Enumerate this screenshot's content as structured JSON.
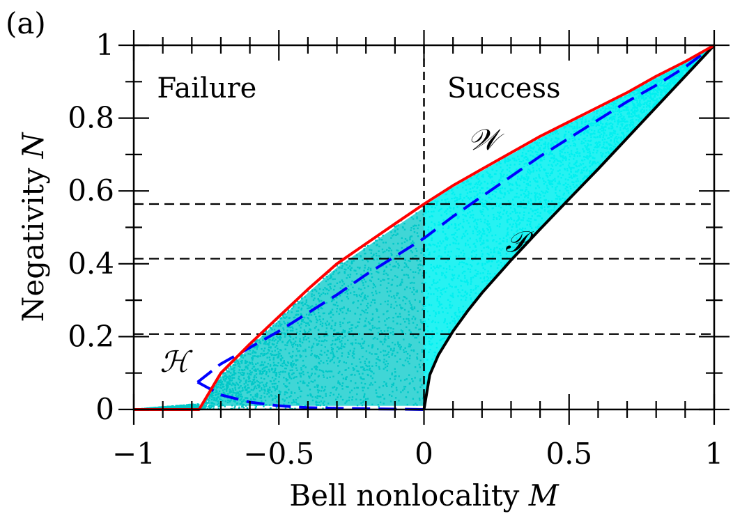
{
  "panel_label": "(a)",
  "chart_data": {
    "type": "scatter",
    "xlabel": "Bell nonlocality M",
    "xlabel_main": "Bell nonlocality",
    "xlabel_var": "M",
    "ylabel": "Negativity N",
    "ylabel_main": "Negativity",
    "ylabel_var": "N",
    "xlim": [
      -1,
      1
    ],
    "ylim": [
      0,
      1
    ],
    "x_ticks": [
      -1,
      -0.5,
      0,
      0.5,
      1
    ],
    "x_tick_labels": [
      "−1",
      "−0.5",
      "0",
      "0.5",
      "1"
    ],
    "y_ticks": [
      0,
      0.2,
      0.4,
      0.6,
      0.8,
      1
    ],
    "y_tick_labels": [
      "0",
      "0.2",
      "0.4",
      "0.6",
      "0.8",
      "1"
    ],
    "x_minor_step": 0.1,
    "y_minor_step": 0.1,
    "grid": false,
    "region_labels": [
      {
        "text": "Failure",
        "x": -0.92,
        "y": 0.88
      },
      {
        "text": "Success",
        "x": 0.08,
        "y": 0.88
      }
    ],
    "curve_labels": [
      {
        "text": "𝒲",
        "x": 0.15,
        "y": 0.74,
        "color": "#000000"
      },
      {
        "text": "𝒫",
        "x": 0.28,
        "y": 0.46,
        "color": "#000000"
      },
      {
        "text": "ℋ",
        "x": -0.91,
        "y": 0.13,
        "color": "#000000"
      }
    ],
    "reference_lines": {
      "vertical_x": 0,
      "horizontal_y": [
        0.564,
        0.414,
        0.207
      ]
    },
    "colors": {
      "scatter": "#00c8c8",
      "scatter_success": "#00f0f0",
      "W_curve": "#ff0000",
      "H_curve": "#0000ff",
      "P_curve": "#000000",
      "reference": "#000000"
    },
    "series": [
      {
        "name": "𝒲",
        "style": "solid",
        "x": [
          -1.0,
          -0.775,
          -0.7,
          -0.65,
          -0.6,
          -0.5,
          -0.4,
          -0.3,
          -0.2,
          -0.1,
          0.0,
          0.1,
          0.2,
          0.3,
          0.4,
          0.5,
          0.6,
          0.7,
          0.8,
          0.9,
          1.0
        ],
        "y": [
          0.0,
          0.0,
          0.1,
          0.14,
          0.18,
          0.255,
          0.33,
          0.4,
          0.455,
          0.51,
          0.564,
          0.615,
          0.66,
          0.705,
          0.75,
          0.79,
          0.83,
          0.87,
          0.915,
          0.955,
          1.0
        ]
      },
      {
        "name": "ℋ",
        "style": "dashed",
        "x": [
          -0.78,
          -0.7,
          -0.6,
          -0.5,
          -0.4,
          -0.3,
          -0.2,
          -0.1,
          0.0,
          0.1,
          0.2,
          0.3,
          0.4,
          0.5,
          0.6,
          0.7,
          0.8,
          0.9,
          1.0
        ],
        "y": [
          0.075,
          0.125,
          0.17,
          0.215,
          0.265,
          0.315,
          0.37,
          0.42,
          0.47,
          0.53,
          0.585,
          0.64,
          0.695,
          0.745,
          0.795,
          0.845,
          0.89,
          0.94,
          1.0
        ]
      },
      {
        "name": "ℋ-lower",
        "style": "dashed",
        "x": [
          -0.78,
          -0.7,
          -0.6,
          -0.5,
          -0.4,
          -0.3,
          -0.2,
          -0.1,
          0.0
        ],
        "y": [
          0.075,
          0.04,
          0.02,
          0.01,
          0.005,
          0.003,
          0.002,
          0.001,
          0.0
        ]
      },
      {
        "name": "𝒫",
        "style": "solid",
        "x": [
          0.0,
          0.02,
          0.05,
          0.1,
          0.15,
          0.2,
          0.3,
          0.4,
          0.5,
          0.6,
          0.7,
          0.8,
          0.9,
          1.0
        ],
        "y": [
          0.0,
          0.095,
          0.15,
          0.215,
          0.27,
          0.32,
          0.41,
          0.495,
          0.578,
          0.66,
          0.745,
          0.83,
          0.915,
          1.0
        ]
      }
    ],
    "scatter_region": {
      "upper_boundary_series": "𝒲",
      "lower_boundary_series": "𝒫",
      "points_estimate": 6000
    }
  }
}
